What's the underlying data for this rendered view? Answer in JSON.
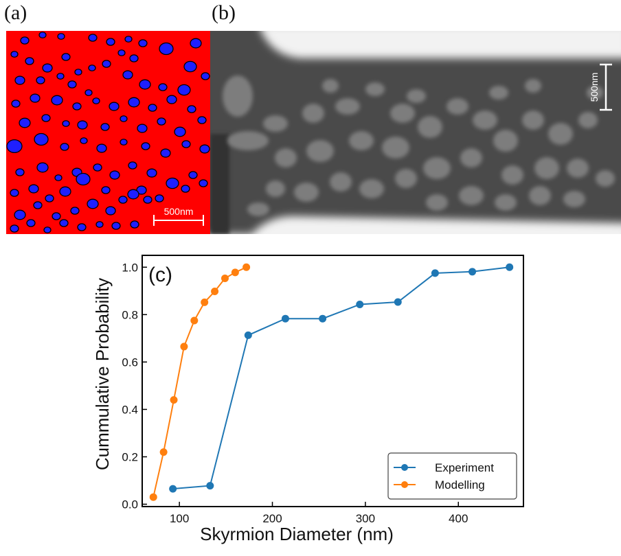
{
  "panels": {
    "a": {
      "label": "(a)",
      "scale_bar": "500nm",
      "background_color": "#ff0000",
      "skyrmion_color": "#1f1fff",
      "skyrmion_outline": "#000000"
    },
    "b": {
      "label": "(b)",
      "scale_bar": "500nm"
    },
    "c": {
      "label": "(c)"
    }
  },
  "chart_data": {
    "type": "line",
    "xlabel": "Skyrmion Diameter (nm)",
    "ylabel": "Cummulative Probability",
    "xlim": [
      60,
      470
    ],
    "ylim": [
      -0.01,
      1.05
    ],
    "xticks": [
      100,
      200,
      300,
      400
    ],
    "yticks": [
      0.0,
      0.2,
      0.4,
      0.6,
      0.8,
      1.0
    ],
    "grid": false,
    "legend_position": "lower-right",
    "series": [
      {
        "name": "Experiment",
        "color": "#1f77b4",
        "x": [
          93,
          133,
          174,
          214,
          254,
          294,
          335,
          375,
          415,
          455
        ],
        "y": [
          0.065,
          0.078,
          0.713,
          0.783,
          0.783,
          0.843,
          0.853,
          0.975,
          0.981,
          1.0
        ]
      },
      {
        "name": "Modelling",
        "color": "#ff7f0e",
        "x": [
          72,
          83,
          94,
          105,
          116,
          127,
          138,
          149,
          160,
          172
        ],
        "y": [
          0.03,
          0.22,
          0.44,
          0.665,
          0.775,
          0.852,
          0.898,
          0.953,
          0.978,
          1.0
        ]
      }
    ]
  }
}
